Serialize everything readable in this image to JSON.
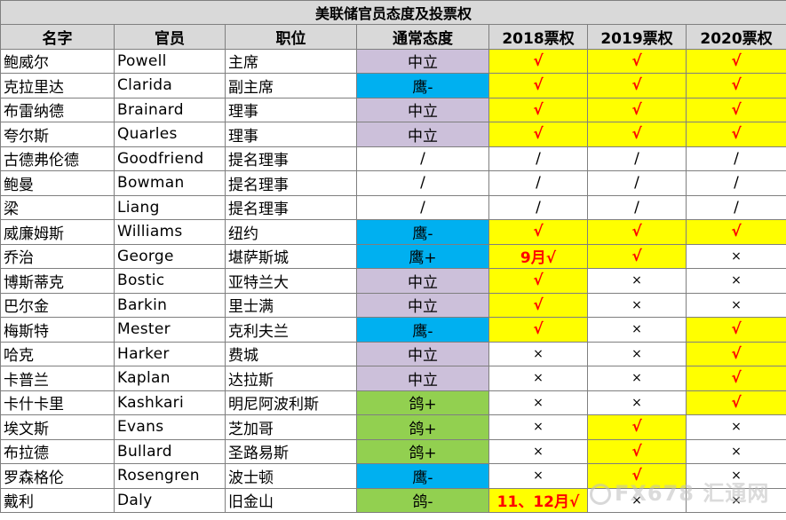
{
  "table": {
    "title": "美联储官员态度及投票权",
    "headers": [
      "名字",
      "官员",
      "职位",
      "通常态度",
      "2018票权",
      "2019票权",
      "2020票权"
    ],
    "colors": {
      "header_bg": "#d9d9d9",
      "neutral": "#ccc0da",
      "hawk": "#00b0f0",
      "dove": "#92d050",
      "vote_yes": "#ffff00",
      "vote_red_text": "#ff0000"
    },
    "rows": [
      {
        "cn": "鲍威尔",
        "en": "Powell",
        "pos": "主席",
        "att": "中立",
        "v18": "√",
        "v19": "√",
        "v20": "√"
      },
      {
        "cn": "克拉里达",
        "en": "Clarida",
        "pos": "副主席",
        "att": "鹰-",
        "v18": "√",
        "v19": "√",
        "v20": "√"
      },
      {
        "cn": "布雷纳德",
        "en": "Brainard",
        "pos": "理事",
        "att": "中立",
        "v18": "√",
        "v19": "√",
        "v20": "√"
      },
      {
        "cn": "夸尔斯",
        "en": "Quarles",
        "pos": "理事",
        "att": "中立",
        "v18": "√",
        "v19": "√",
        "v20": "√"
      },
      {
        "cn": "古德弗伦德",
        "en": "Goodfriend",
        "pos": "提名理事",
        "att": "/",
        "v18": "/",
        "v19": "/",
        "v20": "/"
      },
      {
        "cn": "鲍曼",
        "en": "Bowman",
        "pos": "提名理事",
        "att": "/",
        "v18": "/",
        "v19": "/",
        "v20": "/"
      },
      {
        "cn": "梁",
        "en": "Liang",
        "pos": "提名理事",
        "att": "/",
        "v18": "/",
        "v19": "/",
        "v20": "/"
      },
      {
        "cn": "威廉姆斯",
        "en": "Williams",
        "pos": "纽约",
        "att": "鹰-",
        "v18": "√",
        "v19": "√",
        "v20": "√"
      },
      {
        "cn": "乔治",
        "en": "George",
        "pos": "堪萨斯城",
        "att": "鹰+",
        "v18": "9月√",
        "v19": "√",
        "v20": "×"
      },
      {
        "cn": "博斯蒂克",
        "en": "Bostic",
        "pos": "亚特兰大",
        "att": "中立",
        "v18": "√",
        "v19": "×",
        "v20": "×"
      },
      {
        "cn": "巴尔金",
        "en": "Barkin",
        "pos": "里士满",
        "att": "中立",
        "v18": "√",
        "v19": "×",
        "v20": "×"
      },
      {
        "cn": "梅斯特",
        "en": "Mester",
        "pos": "克利夫兰",
        "att": "鹰-",
        "v18": "√",
        "v19": "×",
        "v20": "√"
      },
      {
        "cn": "哈克",
        "en": "Harker",
        "pos": "费城",
        "att": "中立",
        "v18": "×",
        "v19": "×",
        "v20": "√"
      },
      {
        "cn": "卡普兰",
        "en": "Kaplan",
        "pos": "达拉斯",
        "att": "中立",
        "v18": "×",
        "v19": "×",
        "v20": "√"
      },
      {
        "cn": "卡什卡里",
        "en": "Kashkari",
        "pos": "明尼阿波利斯",
        "att": "鸽+",
        "v18": "×",
        "v19": "×",
        "v20": "√"
      },
      {
        "cn": "埃文斯",
        "en": "Evans",
        "pos": "芝加哥",
        "att": "鸽+",
        "v18": "×",
        "v19": "√",
        "v20": "×"
      },
      {
        "cn": "布拉德",
        "en": "Bullard",
        "pos": "圣路易斯",
        "att": "鸽+",
        "v18": "×",
        "v19": "√",
        "v20": "×"
      },
      {
        "cn": "罗森格伦",
        "en": "Rosengren",
        "pos": "波士顿",
        "att": "鹰-",
        "v18": "×",
        "v19": "√",
        "v20": "×"
      },
      {
        "cn": "戴利",
        "en": "Daly",
        "pos": "旧金山",
        "att": "鸽-",
        "v18": "11、12月√",
        "v19": "×",
        "v20": "×"
      }
    ]
  },
  "watermark": "FX678 汇通网"
}
